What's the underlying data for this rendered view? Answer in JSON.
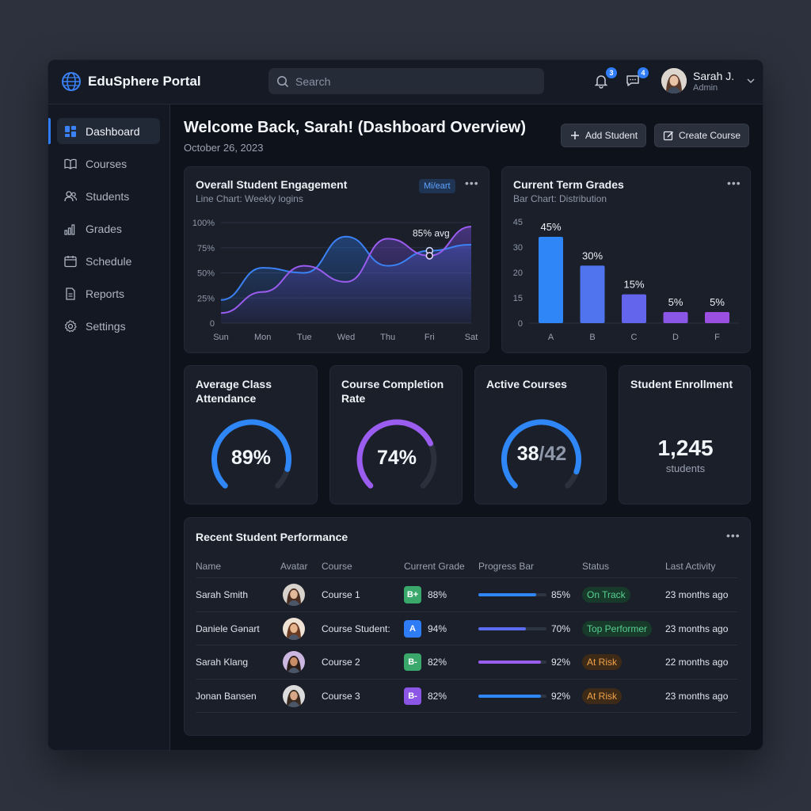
{
  "app": {
    "title": "EduSphere Portal",
    "accent": "#2f7df6"
  },
  "search": {
    "placeholder": "Search"
  },
  "notifications": {
    "bell_count": "3",
    "chat_count": "4"
  },
  "user": {
    "name": "Sarah J.",
    "role": "Admin"
  },
  "sidebar": {
    "items": [
      {
        "label": "Dashboard",
        "icon": "dashboard-icon",
        "active": true
      },
      {
        "label": "Courses",
        "icon": "book-icon"
      },
      {
        "label": "Students",
        "icon": "users-icon"
      },
      {
        "label": "Grades",
        "icon": "bar-chart-icon"
      },
      {
        "label": "Schedule",
        "icon": "calendar-icon"
      },
      {
        "label": "Reports",
        "icon": "document-icon"
      },
      {
        "label": "Settings",
        "icon": "gear-icon"
      }
    ]
  },
  "header": {
    "title": "Welcome Back, Sarah! (Dashboard Overview)",
    "date": "October 26, 2023",
    "add_student": "Add Student",
    "create_course": "Create Course"
  },
  "engagement": {
    "title": "Overall Student Engagement",
    "subtitle": "Line Chart: Weekly logins",
    "tag": "Mi/eart",
    "annotation": "85% avg"
  },
  "grades_card": {
    "title": "Current Term Grades",
    "subtitle": "Bar Chart: Distribution"
  },
  "chart_data": [
    {
      "type": "line",
      "title": "Overall Student Engagement",
      "x": [
        "Sun",
        "Mon",
        "Tue",
        "Wed",
        "Thu",
        "Fri",
        "Sat"
      ],
      "y_ticks": [
        "0",
        "25%",
        "50%",
        "75%",
        "100%"
      ],
      "ylim": [
        0,
        100
      ],
      "series": [
        {
          "values": [
            23,
            55,
            50,
            86,
            57,
            72,
            78
          ],
          "color": "#3b82f6"
        },
        {
          "values": [
            10,
            31,
            57,
            41,
            84,
            67,
            96
          ],
          "color": "#9b5cf0"
        }
      ],
      "annotation": "85% avg",
      "grid": true
    },
    {
      "type": "bar",
      "title": "Current Term Grades",
      "categories": [
        "A",
        "B",
        "C",
        "D",
        "F"
      ],
      "values": [
        45,
        30,
        15,
        5,
        5
      ],
      "data_labels": [
        "45%",
        "30%",
        "15%",
        "5%",
        "5%"
      ],
      "y_ticks": [
        "0",
        "15",
        "20",
        "30",
        "45"
      ],
      "colors": [
        "#2f86f6",
        "#4f74ee",
        "#6366ec",
        "#8a56e6",
        "#9b4fe0"
      ]
    }
  ],
  "stats": {
    "attendance": {
      "title": "Average Class Attendance",
      "value": "89%",
      "fraction": 0.89,
      "color": "#2f86f6"
    },
    "completion": {
      "title": "Course Completion Rate",
      "value": "74%",
      "fraction": 0.74,
      "color": "#9b5cf0"
    },
    "active": {
      "title": "Active Courses",
      "value": "38",
      "total": "/42",
      "fraction": 0.905,
      "color": "#2f86f6"
    },
    "enrollment": {
      "title": "Student Enrollment",
      "value": "1,245",
      "unit": "students"
    }
  },
  "performance": {
    "title": "Recent Student Performance",
    "columns": [
      "Name",
      "Avatar",
      "Course",
      "Current Grade",
      "Progress Bar",
      "Status",
      "Last Activity"
    ],
    "rows": [
      {
        "name": "Sarah Smith",
        "course": "Course 1",
        "grade": "B+",
        "grade_color": "#3aa86b",
        "score": "88%",
        "progress": "85%",
        "progress_value": 0.85,
        "bar_color": "#2f86f6",
        "status": "On Track",
        "status_bg": "#173a2b",
        "status_fg": "#58d08f",
        "last": "23 months ago"
      },
      {
        "name": "Daniele Gənart",
        "course": "Course Student:",
        "grade": "A",
        "grade_color": "#2f7df6",
        "score": "94%",
        "progress": "70%",
        "progress_value": 0.7,
        "bar_color": "#5b6cf0",
        "status": "Top Performer",
        "status_bg": "#173a2b",
        "status_fg": "#58d08f",
        "last": "23 months ago"
      },
      {
        "name": "Sarah Klang",
        "course": "Course 2",
        "grade": "B-",
        "grade_color": "#3aa86b",
        "score": "82%",
        "progress": "92%",
        "progress_value": 0.92,
        "bar_color": "#9b5cf0",
        "status": "At Risk",
        "status_bg": "#3d2a17",
        "status_fg": "#f0a24a",
        "last": "22 months ago"
      },
      {
        "name": "Jonan Bansen",
        "course": "Course 3",
        "grade": "B-",
        "grade_color": "#8b55e6",
        "score": "82%",
        "progress": "92%",
        "progress_value": 0.92,
        "bar_color": "#2f86f6",
        "status": "At Risk",
        "status_bg": "#3d2a17",
        "status_fg": "#f0a24a",
        "last": "23 months ago"
      }
    ]
  }
}
